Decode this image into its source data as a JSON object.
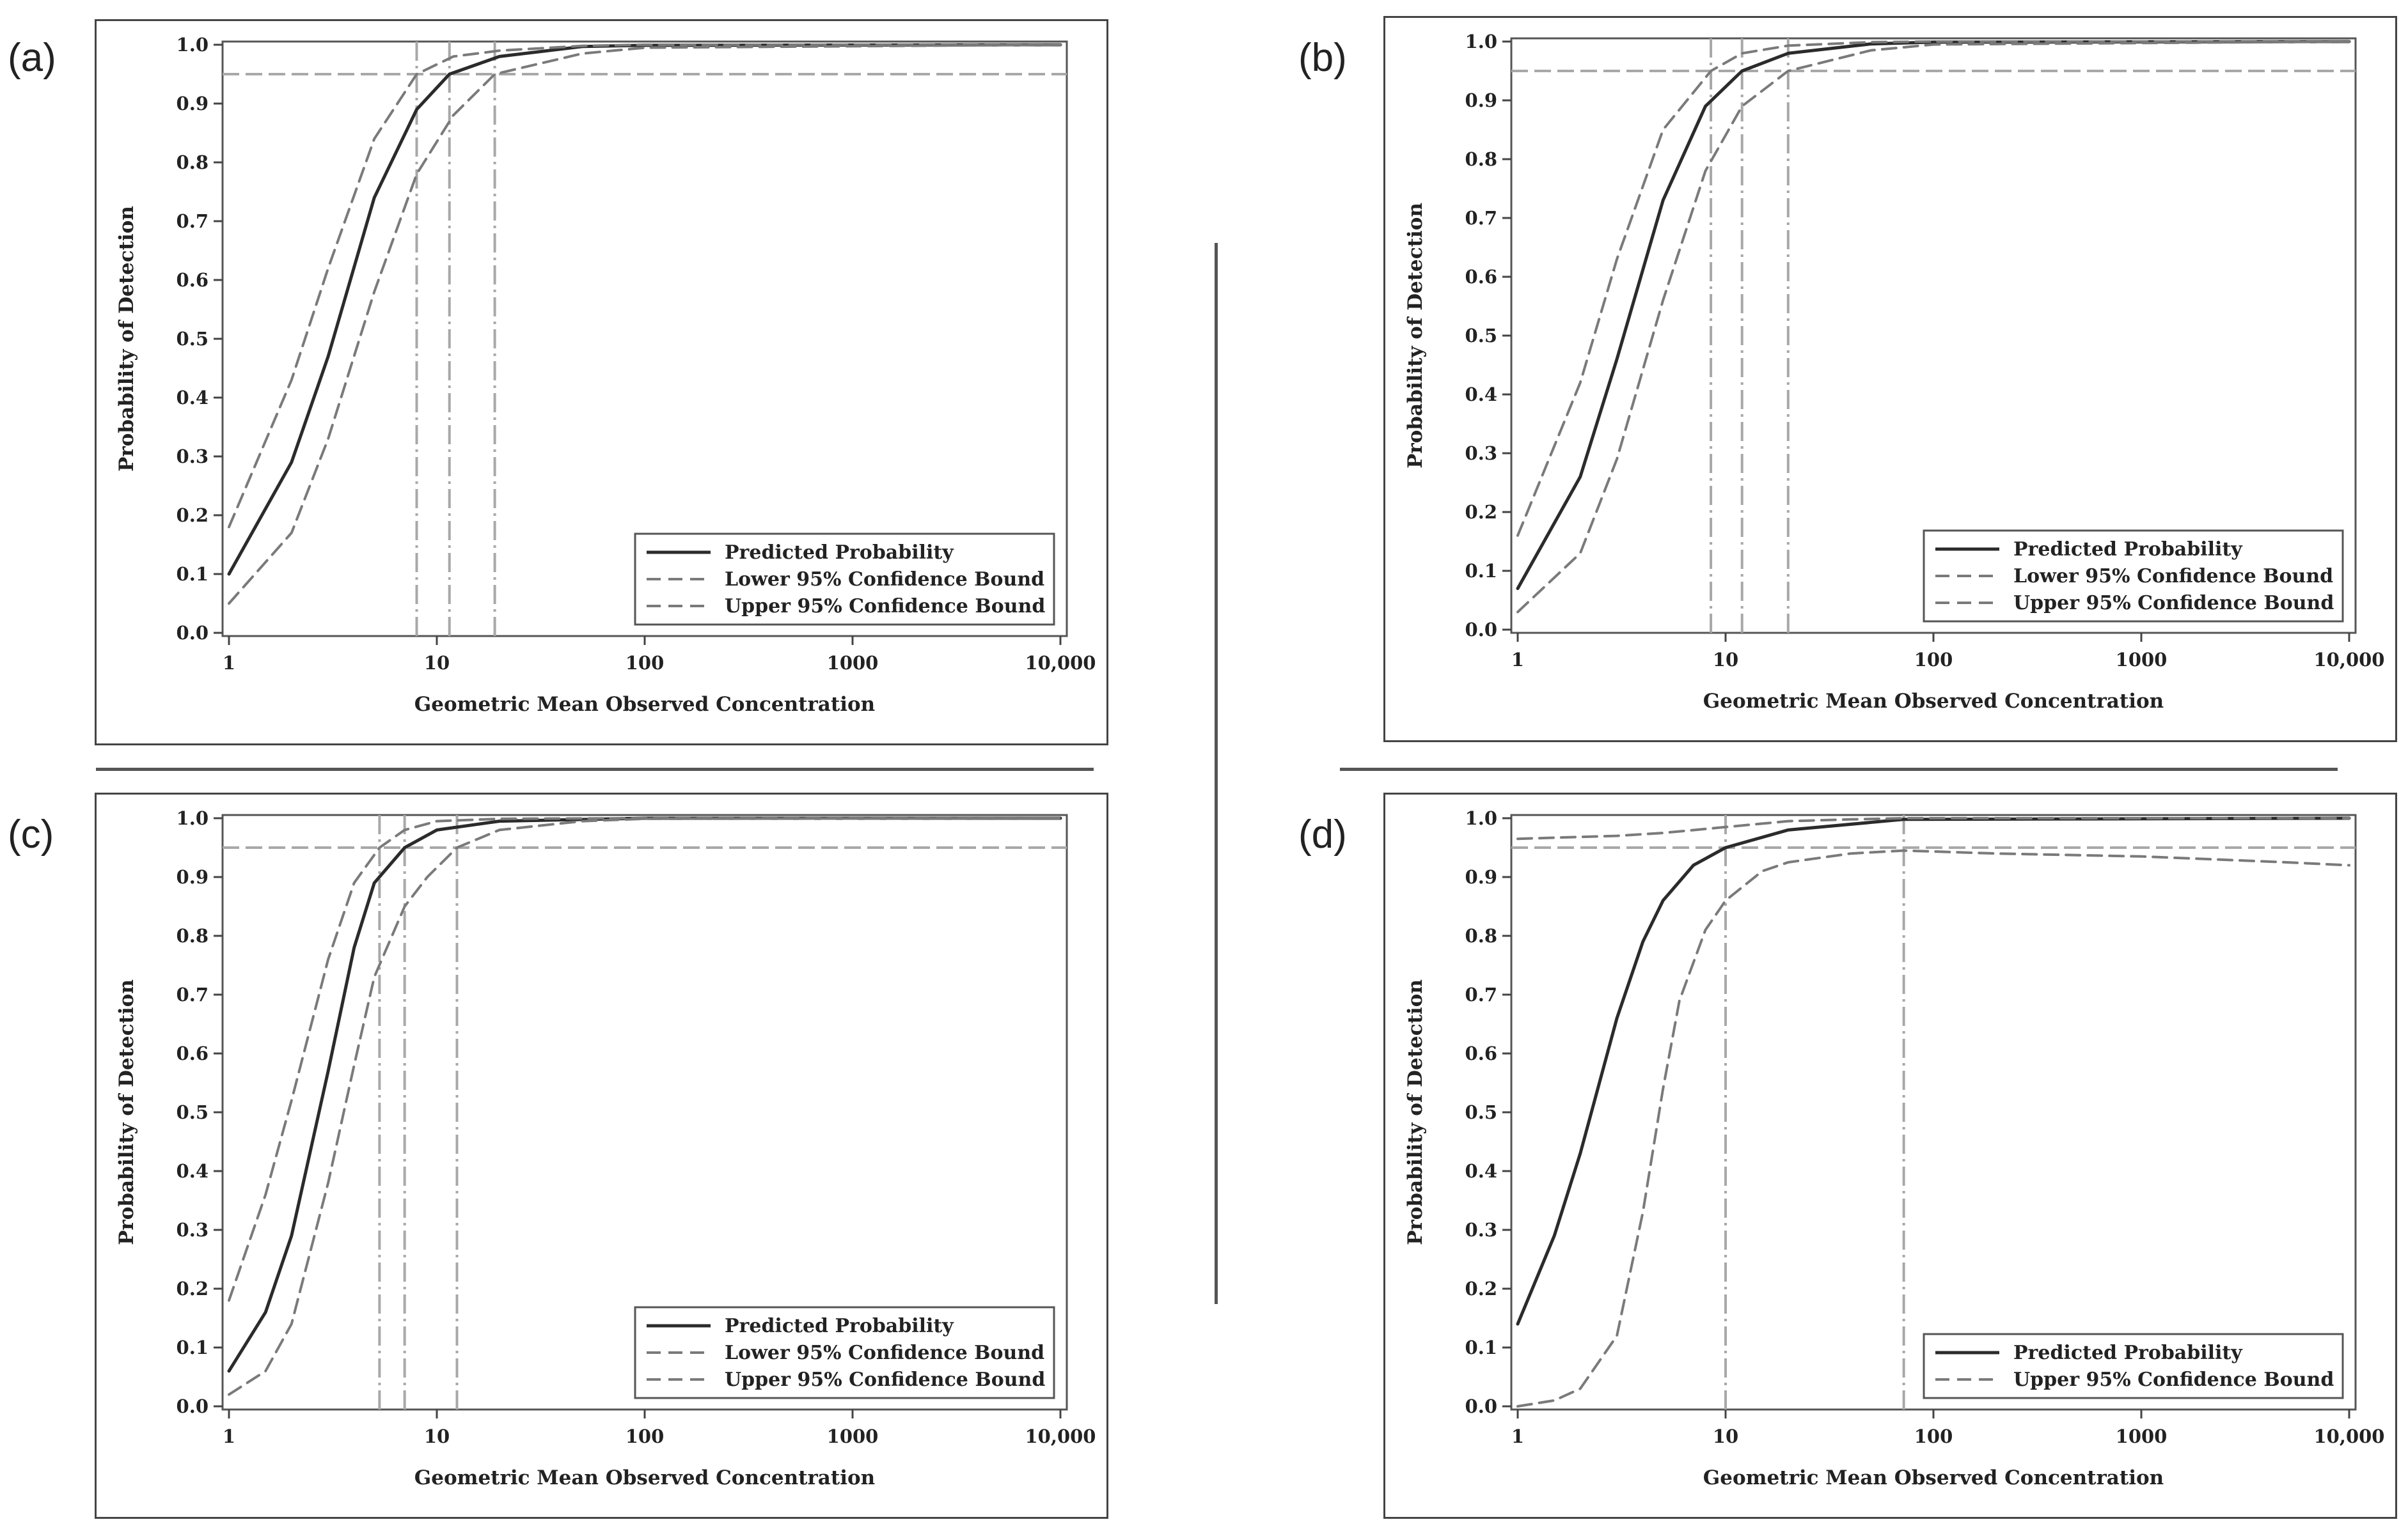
{
  "labels": [
    "(a)",
    "(b)",
    "(c)",
    "(d)"
  ],
  "colors": {
    "predicted": "#2b2b2b",
    "bound": "#7a7a7a",
    "ref": "#a8a8a8"
  },
  "chart_data": [
    {
      "type": "line",
      "label": "(a)",
      "x_scale": "log",
      "xlim": [
        1,
        10000
      ],
      "ylim": [
        0,
        1
      ],
      "xlabel": "Geometric Mean Observed Concentration",
      "ylabel": "Probability of Detection",
      "x_ticks": [
        "1",
        "10",
        "100",
        "1000",
        "10,000"
      ],
      "y_ticks": [
        "0.0",
        "0.1",
        "0.2",
        "0.3",
        "0.4",
        "0.5",
        "0.6",
        "0.7",
        "0.8",
        "0.9",
        "1.0"
      ],
      "reference_y": 0.95,
      "reference_x": [
        8,
        11.5,
        19
      ],
      "legend": [
        "Predicted Probability",
        "Lower 95% Confidence Bound",
        "Upper 95% Confidence Bound"
      ],
      "series": [
        {
          "name": "Predicted Probability",
          "style": "solid",
          "x": [
            1,
            2,
            3,
            5,
            8,
            11.5,
            20,
            50,
            100,
            10000
          ],
          "y": [
            0.1,
            0.29,
            0.47,
            0.74,
            0.89,
            0.95,
            0.98,
            0.997,
            0.999,
            1.0
          ]
        },
        {
          "name": "Upper 95% Confidence Bound",
          "style": "dashed",
          "x": [
            1,
            2,
            3,
            5,
            8,
            12,
            20,
            50,
            100,
            10000
          ],
          "y": [
            0.18,
            0.43,
            0.62,
            0.84,
            0.95,
            0.98,
            0.99,
            0.998,
            1.0,
            1.0
          ]
        },
        {
          "name": "Lower 95% Confidence Bound",
          "style": "dashed",
          "x": [
            1,
            2,
            3,
            5,
            8,
            12,
            19,
            50,
            100,
            10000
          ],
          "y": [
            0.05,
            0.17,
            0.33,
            0.58,
            0.78,
            0.88,
            0.95,
            0.985,
            0.995,
            1.0
          ]
        }
      ]
    },
    {
      "type": "line",
      "label": "(b)",
      "x_scale": "log",
      "xlim": [
        1,
        10000
      ],
      "ylim": [
        0,
        1
      ],
      "xlabel": "Geometric Mean Observed Concentration",
      "ylabel": "Probability of Detection",
      "x_ticks": [
        "1",
        "10",
        "100",
        "1000",
        "10,000"
      ],
      "y_ticks": [
        "0.0",
        "0.1",
        "0.2",
        "0.3",
        "0.4",
        "0.5",
        "0.6",
        "0.7",
        "0.8",
        "0.9",
        "1.0"
      ],
      "reference_y": 0.95,
      "reference_x": [
        8.5,
        12,
        20
      ],
      "legend": [
        "Predicted Probability",
        "Lower 95% Confidence Bound",
        "Upper 95% Confidence Bound"
      ],
      "series": [
        {
          "name": "Predicted Probability",
          "style": "solid",
          "x": [
            1,
            2,
            3,
            5,
            8,
            12,
            20,
            50,
            100,
            10000
          ],
          "y": [
            0.07,
            0.26,
            0.46,
            0.73,
            0.89,
            0.95,
            0.98,
            0.996,
            0.999,
            1.0
          ]
        },
        {
          "name": "Upper 95% Confidence Bound",
          "style": "dashed",
          "x": [
            1,
            2,
            3,
            5,
            8.5,
            12,
            20,
            50,
            100,
            10000
          ],
          "y": [
            0.16,
            0.42,
            0.63,
            0.85,
            0.95,
            0.98,
            0.993,
            0.999,
            1.0,
            1.0
          ]
        },
        {
          "name": "Lower 95% Confidence Bound",
          "style": "dashed",
          "x": [
            1,
            2,
            3,
            5,
            8,
            12,
            20,
            50,
            100,
            10000
          ],
          "y": [
            0.03,
            0.13,
            0.29,
            0.56,
            0.78,
            0.89,
            0.95,
            0.985,
            0.995,
            1.0
          ]
        }
      ]
    },
    {
      "type": "line",
      "label": "(c)",
      "x_scale": "log",
      "xlim": [
        1,
        10000
      ],
      "ylim": [
        0,
        1
      ],
      "xlabel": "Geometric Mean Observed Concentration",
      "ylabel": "Probability of Detection",
      "x_ticks": [
        "1",
        "10",
        "100",
        "1000",
        "10,000"
      ],
      "y_ticks": [
        "0.0",
        "0.1",
        "0.2",
        "0.3",
        "0.4",
        "0.5",
        "0.6",
        "0.7",
        "0.8",
        "0.9",
        "1.0"
      ],
      "reference_y": 0.95,
      "reference_x": [
        5.3,
        7,
        12.5
      ],
      "legend": [
        "Predicted Probability",
        "Lower 95% Confidence Bound",
        "Upper 95% Confidence Bound"
      ],
      "series": [
        {
          "name": "Predicted Probability",
          "style": "solid",
          "x": [
            1,
            1.5,
            2,
            3,
            4,
            5,
            7,
            10,
            20,
            100,
            10000
          ],
          "y": [
            0.06,
            0.16,
            0.29,
            0.57,
            0.78,
            0.89,
            0.95,
            0.98,
            0.995,
            1.0,
            1.0
          ]
        },
        {
          "name": "Upper 95% Confidence Bound",
          "style": "dashed",
          "x": [
            1,
            1.5,
            2,
            3,
            4,
            5.3,
            7,
            10,
            20,
            100,
            10000
          ],
          "y": [
            0.18,
            0.36,
            0.52,
            0.76,
            0.89,
            0.95,
            0.98,
            0.995,
            0.999,
            1.0,
            1.0
          ]
        },
        {
          "name": "Lower 95% Confidence Bound",
          "style": "dashed",
          "x": [
            1,
            1.5,
            2,
            3,
            4,
            5,
            7,
            9,
            12.5,
            20,
            50,
            100,
            10000
          ],
          "y": [
            0.02,
            0.06,
            0.14,
            0.38,
            0.58,
            0.73,
            0.85,
            0.9,
            0.95,
            0.98,
            0.995,
            0.999,
            1.0
          ]
        }
      ]
    },
    {
      "type": "line",
      "label": "(d)",
      "x_scale": "log",
      "xlim": [
        1,
        10000
      ],
      "ylim": [
        0,
        1
      ],
      "xlabel": "Geometric Mean Observed Concentration",
      "ylabel": "Probability of Detection",
      "x_ticks": [
        "1",
        "10",
        "100",
        "1000",
        "10,000"
      ],
      "y_ticks": [
        "0.0",
        "0.1",
        "0.2",
        "0.3",
        "0.4",
        "0.5",
        "0.6",
        "0.7",
        "0.8",
        "0.9",
        "1.0"
      ],
      "reference_y": 0.95,
      "reference_x": [
        10,
        72
      ],
      "legend": [
        "Predicted Probability",
        "Upper 95% Confidence Bound"
      ],
      "series": [
        {
          "name": "Predicted Probability",
          "style": "solid",
          "x": [
            1,
            1.5,
            2,
            3,
            4,
            5,
            7,
            10,
            20,
            72,
            10000
          ],
          "y": [
            0.14,
            0.29,
            0.43,
            0.66,
            0.79,
            0.86,
            0.92,
            0.95,
            0.98,
            0.998,
            1.0
          ]
        },
        {
          "name": "Upper 95% Confidence Bound",
          "style": "dashed",
          "x": [
            1,
            1.5,
            2,
            3,
            4,
            5,
            6,
            8,
            10,
            15,
            20,
            40,
            72,
            200,
            1000,
            5000,
            10000
          ],
          "y": [
            0.0,
            0.01,
            0.03,
            0.12,
            0.33,
            0.54,
            0.69,
            0.81,
            0.86,
            0.91,
            0.925,
            0.94,
            0.945,
            0.94,
            0.935,
            0.925,
            0.92
          ]
        },
        {
          "name": "Upper 95% Confidence Bound (upper limb)",
          "style": "dashed",
          "x": [
            1,
            3,
            5,
            10,
            20,
            40,
            72,
            10000
          ],
          "y": [
            0.965,
            0.97,
            0.975,
            0.985,
            0.995,
            0.998,
            1.0,
            1.0
          ]
        }
      ]
    }
  ]
}
